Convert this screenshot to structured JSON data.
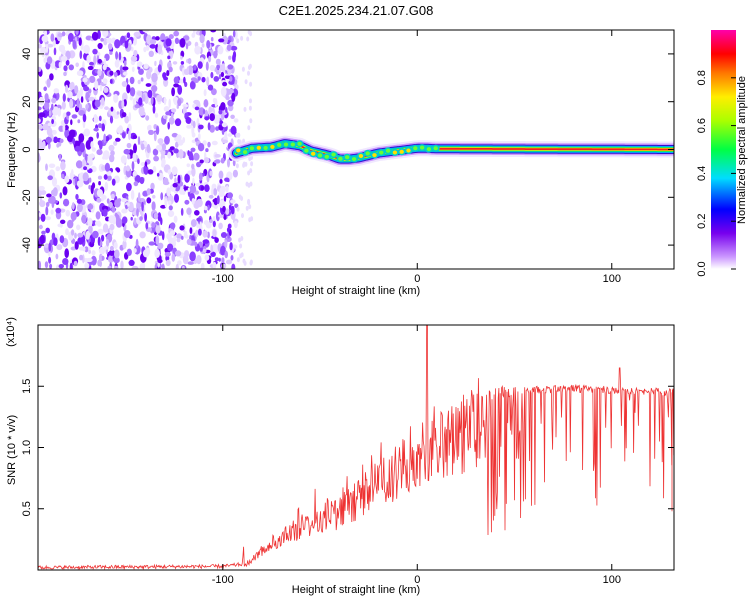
{
  "title": "C2E1.2025.234.21.07.G08",
  "colorbar": {
    "label": "Normalized spectral amplitude",
    "ticks": [
      "0.0",
      "0.2",
      "0.4",
      "0.6",
      "0.8"
    ]
  },
  "chart_data": [
    {
      "type": "heatmap",
      "name": "spectrogram",
      "xlabel": "Height of straight line (km)",
      "ylabel": "Frequency (Hz)",
      "xlim": [
        -195,
        132
      ],
      "ylim": [
        -50,
        50
      ],
      "xticks": [
        "-100",
        "0",
        "100"
      ],
      "yticks": [
        "-40",
        "-20",
        "0",
        "20",
        "40"
      ],
      "noise_region_x": [
        -195,
        -93
      ],
      "carrier_track": {
        "x": [
          -93,
          -85,
          -75,
          -68,
          -60,
          -55,
          -50,
          -45,
          -40,
          -35,
          -30,
          -25,
          -20,
          -15,
          -10,
          -5,
          0,
          5,
          10,
          132
        ],
        "freq": [
          -1.5,
          0.5,
          1.0,
          2.5,
          1.5,
          -0.5,
          -1.5,
          -2.5,
          -4.0,
          -4.0,
          -3.5,
          -2.5,
          -1.5,
          -1.0,
          -0.5,
          0.0,
          0.5,
          0.5,
          0.3,
          0.0
        ]
      }
    },
    {
      "type": "line",
      "name": "snr",
      "xlabel": "Height of straight line (km)",
      "ylabel": "SNR (10 * v/v)",
      "scale_label": "(x10⁴)",
      "xlim": [
        -195,
        132
      ],
      "ylim": [
        0,
        2.0
      ],
      "xticks": [
        "-100",
        "0",
        "100"
      ],
      "yticks": [
        "0.5",
        "1.0",
        "1.5"
      ],
      "envelope_x": [
        -195,
        -100,
        -88,
        -80,
        -70,
        -60,
        -50,
        -40,
        -30,
        -20,
        -10,
        0,
        5,
        10,
        20,
        30,
        40,
        60,
        80,
        100,
        132
      ],
      "envelope_y": [
        0.02,
        0.03,
        0.05,
        0.2,
        0.35,
        0.45,
        0.55,
        0.6,
        0.75,
        0.9,
        1.05,
        1.2,
        1.3,
        1.35,
        1.4,
        1.45,
        1.5,
        1.5,
        1.51,
        1.5,
        1.48
      ],
      "peaks": [
        {
          "x": 5,
          "y": 1.98
        },
        {
          "x": 104,
          "y": 1.65
        }
      ],
      "series": [
        {
          "name": "SNR",
          "color": "#ee3333"
        }
      ]
    }
  ]
}
